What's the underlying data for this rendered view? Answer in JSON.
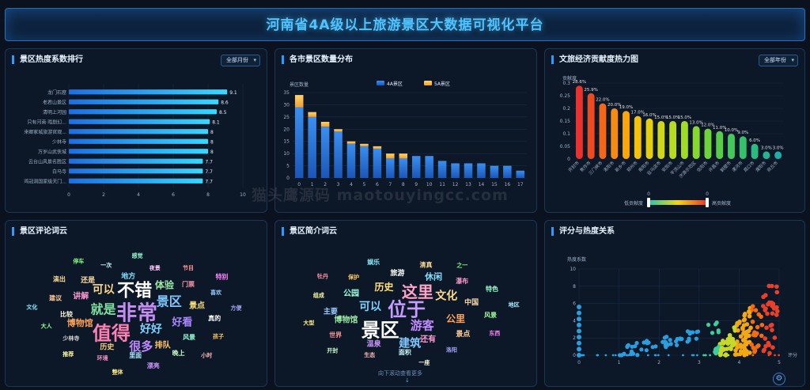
{
  "header": {
    "title": "河南省4A级以上旅游景区大数据可视化平台"
  },
  "watermark": "猫头鹰源码 maotouyingcc.com",
  "panels": {
    "heat_rank": {
      "title": "景区热度系数排行",
      "select": "全部月份"
    },
    "city_dist": {
      "title": "各市景区数量分布"
    },
    "economy": {
      "title": "文旅经济贡献度热力图",
      "select": "全部年份"
    },
    "comment_cloud": {
      "title": "景区评论词云"
    },
    "intro_cloud": {
      "title": "景区简介词云",
      "scroll_hint": "向下滚动查看更多"
    },
    "score_heat": {
      "title": "评分与热度关系"
    }
  },
  "chart_data": [
    {
      "type": "bar",
      "orientation": "horizontal",
      "categories": [
        "龙门石窟",
        "老君山景区",
        "清明上河园",
        "只有河南·戏剧幻...",
        "来卿家城旅游官观...",
        "少林寺",
        "万岁山武侠城",
        "云台山风景名胜区",
        "白马寺",
        "鸡冠洞国家级天门..."
      ],
      "values": [
        9.1,
        8.6,
        8.5,
        8.1,
        8,
        8,
        8,
        7.7,
        7.7,
        7.7
      ],
      "xlim": [
        0,
        10
      ],
      "xticks": [
        0,
        2,
        4,
        6,
        8,
        10
      ]
    },
    {
      "type": "bar",
      "stacked": true,
      "ylabel": "景区数量",
      "categories": [
        "0",
        "1",
        "2",
        "3",
        "4",
        "5",
        "6",
        "7",
        "8",
        "9",
        "10",
        "11",
        "12",
        "13",
        "14",
        "15",
        "16",
        "17"
      ],
      "ylim": [
        0,
        35
      ],
      "yticks": [
        0,
        5,
        10,
        15,
        20,
        25,
        30,
        35
      ],
      "series": [
        {
          "name": "4A景区",
          "values": [
            29,
            25,
            21,
            19,
            14,
            13,
            12,
            8,
            8,
            9,
            9,
            7,
            6,
            6,
            6,
            5,
            5,
            3
          ]
        },
        {
          "name": "5A景区",
          "values": [
            5,
            2,
            2,
            1,
            1,
            1,
            1,
            2,
            2,
            0,
            0,
            0,
            0,
            0,
            0,
            0,
            0,
            0
          ]
        }
      ]
    },
    {
      "type": "bar",
      "ylabel": "贡献度",
      "categories": [
        "开封市",
        "焦作市",
        "三门峡市",
        "洛阳市",
        "新乡市",
        "郑州市",
        "南阳市",
        "驻马店市",
        "安阳市",
        "平顶山市",
        "济源示范区",
        "信阳市",
        "许昌市",
        "鹤壁市",
        "漯河市",
        "周口市",
        "濮阳市",
        "商丘市"
      ],
      "values": [
        0.29,
        0.26,
        0.22,
        0.2,
        0.19,
        0.17,
        0.16,
        0.15,
        0.15,
        0.15,
        0.13,
        0.12,
        0.11,
        0.1,
        0.09,
        0.06,
        0.03,
        0.03
      ],
      "labels": [
        "28.6%",
        "25.9%",
        "22.0%",
        "20.0%",
        "19.0%",
        "17.0%",
        "16.0%",
        "15.0%",
        "15.0%",
        "15.0%",
        "13.0%",
        "12.0%",
        "11.0%",
        "10.0%",
        "9.0%",
        "6.0%",
        "3.0%",
        "3.0%"
      ],
      "ylim": [
        0,
        0.3
      ],
      "yticks": [
        "0",
        "0.05",
        "0.1",
        "0.15",
        "0.2",
        "0.25",
        "0.3"
      ],
      "visualmap": {
        "low_label": "低贡献度",
        "high_label": "高贡献度",
        "min": "0",
        "max": "0"
      }
    },
    {
      "type": "scatter",
      "xlabel": "评分",
      "ylabel": "热度系数",
      "xlim": [
        0,
        5
      ],
      "ylim": [
        0,
        10
      ],
      "xticks": [
        0,
        1,
        2,
        3,
        4,
        5
      ],
      "yticks": [
        0,
        2,
        4,
        6,
        8,
        10
      ]
    }
  ],
  "clouds": {
    "comments": [
      {
        "t": "非常",
        "s": 26,
        "c": "#c58cf2"
      },
      {
        "t": "值得",
        "s": 24,
        "c": "#ff7eb3"
      },
      {
        "t": "不错",
        "s": 22,
        "c": "#ffffff"
      },
      {
        "t": "好好",
        "s": 14,
        "c": "#7fd2ff"
      },
      {
        "t": "就是",
        "s": 16,
        "c": "#80e0a0"
      },
      {
        "t": "景区",
        "s": 16,
        "c": "#7fc8ff"
      },
      {
        "t": "很多",
        "s": 15,
        "c": "#c08bff"
      },
      {
        "t": "可以",
        "s": 14,
        "c": "#ffd98a"
      },
      {
        "t": "好看",
        "s": 13,
        "c": "#aa88ff"
      },
      {
        "t": "博物馆",
        "s": 11,
        "c": "#ffa35c"
      },
      {
        "t": "体验",
        "s": 12,
        "c": "#9be8a6"
      },
      {
        "t": "排队",
        "s": 10,
        "c": "#ffc46b"
      },
      {
        "t": "讲解",
        "s": 10,
        "c": "#ff9ad5"
      },
      {
        "t": "景点",
        "s": 10,
        "c": "#ffe07a"
      },
      {
        "t": "历史",
        "s": 9,
        "c": "#ffcf7a"
      },
      {
        "t": "地方",
        "s": 9,
        "c": "#7fe0ff"
      },
      {
        "t": "风景",
        "s": 8,
        "c": "#9fd"
      },
      {
        "t": "比较",
        "s": 8,
        "c": "#ffd"
      },
      {
        "t": "门票",
        "s": 8,
        "c": "#f9a"
      },
      {
        "t": "里面",
        "s": 8,
        "c": "#aef"
      },
      {
        "t": "还是",
        "s": 9,
        "c": "#fda"
      },
      {
        "t": "真的",
        "s": 8,
        "c": "#fff"
      },
      {
        "t": "少林寺",
        "s": 7,
        "c": "#ddd"
      },
      {
        "t": "夜景",
        "s": 7,
        "c": "#fcf"
      },
      {
        "t": "晚上",
        "s": 8,
        "c": "#cfc"
      },
      {
        "t": "建议",
        "s": 8,
        "c": "#fc9"
      },
      {
        "t": "喜欢",
        "s": 7,
        "c": "#9cf"
      },
      {
        "t": "环境",
        "s": 7,
        "c": "#f9c"
      },
      {
        "t": "一次",
        "s": 7,
        "c": "#cff"
      },
      {
        "t": "孩子",
        "s": 7,
        "c": "#fc6"
      },
      {
        "t": "大人",
        "s": 7,
        "c": "#9f9"
      },
      {
        "t": "节目",
        "s": 7,
        "c": "#f99"
      },
      {
        "t": "漂亮",
        "s": 8,
        "c": "#c9f"
      },
      {
        "t": "演出",
        "s": 8,
        "c": "#fd9"
      },
      {
        "t": "方便",
        "s": 7,
        "c": "#aaf"
      },
      {
        "t": "推荐",
        "s": 7,
        "c": "#ffa"
      },
      {
        "t": "感觉",
        "s": 7,
        "c": "#9fc"
      },
      {
        "t": "小时",
        "s": 7,
        "c": "#fbb"
      },
      {
        "t": "文化",
        "s": 7,
        "c": "#8ef"
      },
      {
        "t": "特别",
        "s": 8,
        "c": "#f8f"
      },
      {
        "t": "整体",
        "s": 7,
        "c": "#fe8"
      },
      {
        "t": "停车",
        "s": 7,
        "c": "#8f8"
      }
    ],
    "intros": [
      {
        "t": "位于",
        "s": 24,
        "c": "#c79cff"
      },
      {
        "t": "景区",
        "s": 24,
        "c": "#ffffff"
      },
      {
        "t": "这里",
        "s": 20,
        "c": "#ffa3c8"
      },
      {
        "t": "游客",
        "s": 15,
        "c": "#c08bff"
      },
      {
        "t": "可以",
        "s": 14,
        "c": "#7fd2ff"
      },
      {
        "t": "文化",
        "s": 14,
        "c": "#ffd98a"
      },
      {
        "t": "建筑",
        "s": 14,
        "c": "#7fc8ff"
      },
      {
        "t": "历史",
        "s": 12,
        "c": "#ffe07a"
      },
      {
        "t": "公里",
        "s": 12,
        "c": "#ffa35c"
      },
      {
        "t": "博物馆",
        "s": 10,
        "c": "#9be8a6"
      },
      {
        "t": "休闲",
        "s": 11,
        "c": "#7fe0ff"
      },
      {
        "t": "还有",
        "s": 10,
        "c": "#ff9ad5"
      },
      {
        "t": "公园",
        "s": 10,
        "c": "#9fd"
      },
      {
        "t": "中国",
        "s": 9,
        "c": "#fda"
      },
      {
        "t": "温泉",
        "s": 9,
        "c": "#c9f"
      },
      {
        "t": "旅游",
        "s": 9,
        "c": "#fff"
      },
      {
        "t": "景点",
        "s": 9,
        "c": "#fc9"
      },
      {
        "t": "主要",
        "s": 9,
        "c": "#9cf"
      },
      {
        "t": "瀑布",
        "s": 8,
        "c": "#f9c"
      },
      {
        "t": "面积",
        "s": 8,
        "c": "#cff"
      },
      {
        "t": "保护",
        "s": 7,
        "c": "#fc6"
      },
      {
        "t": "风景",
        "s": 8,
        "c": "#9f9"
      },
      {
        "t": "世界",
        "s": 8,
        "c": "#f99"
      },
      {
        "t": "清真",
        "s": 8,
        "c": "#fd9"
      },
      {
        "t": "洛阳",
        "s": 7,
        "c": "#aaf"
      },
      {
        "t": "组成",
        "s": 7,
        "c": "#ffa"
      },
      {
        "t": "特色",
        "s": 8,
        "c": "#9fc"
      },
      {
        "t": "生态",
        "s": 7,
        "c": "#fbb"
      },
      {
        "t": "娱乐",
        "s": 8,
        "c": "#8ef"
      },
      {
        "t": "东西",
        "s": 7,
        "c": "#f8f"
      },
      {
        "t": "大型",
        "s": 7,
        "c": "#fe8"
      },
      {
        "t": "之一",
        "s": 7,
        "c": "#8f8"
      },
      {
        "t": "一座",
        "s": 7,
        "c": "#ffd"
      },
      {
        "t": "牡丹",
        "s": 7,
        "c": "#f9a"
      },
      {
        "t": "地区",
        "s": 7,
        "c": "#aef"
      },
      {
        "t": "开封",
        "s": 7,
        "c": "#cfc"
      }
    ]
  }
}
